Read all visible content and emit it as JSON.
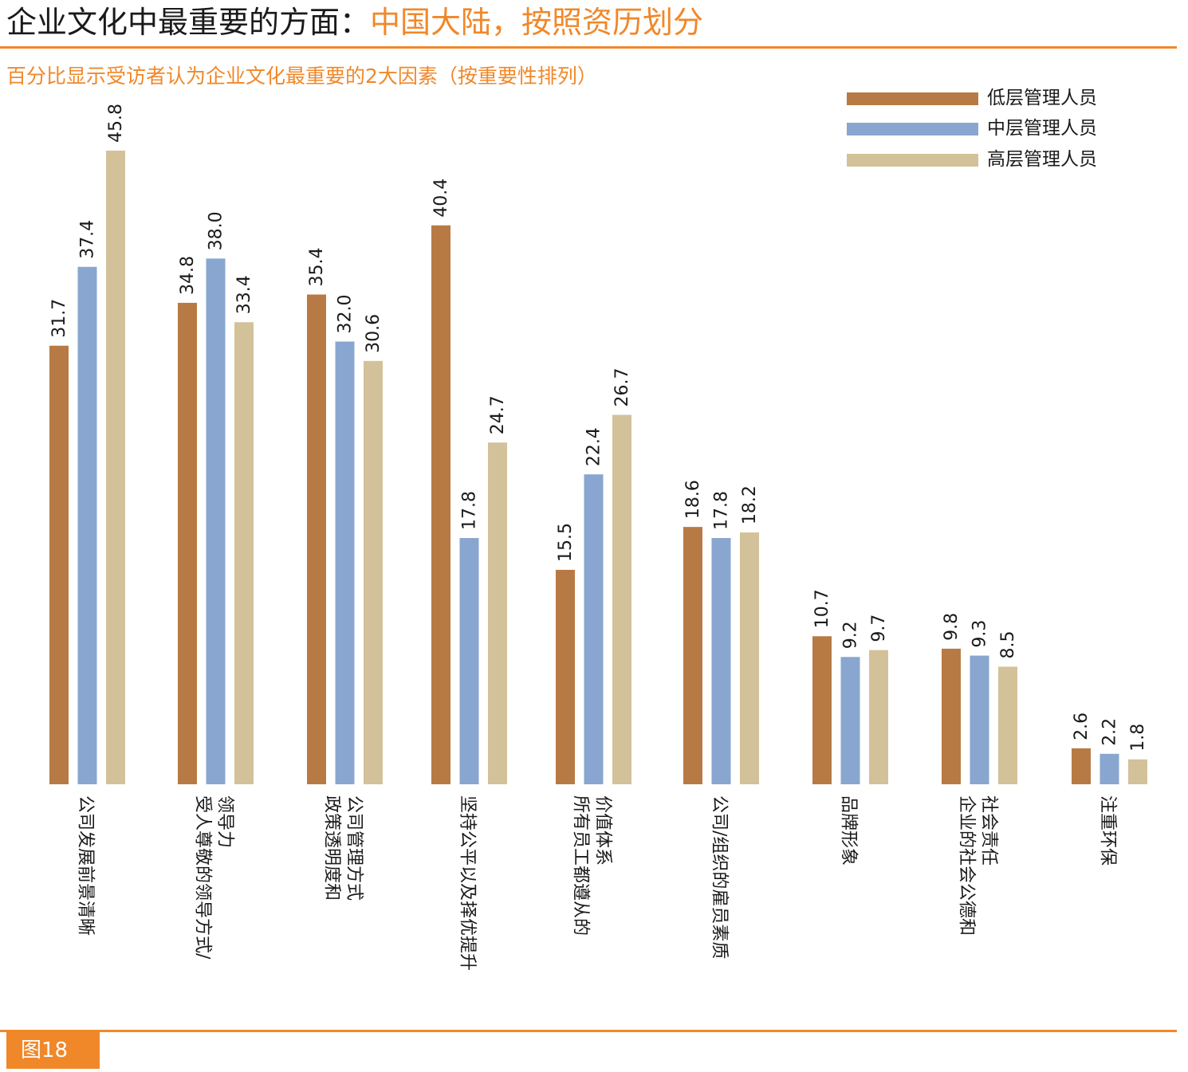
{
  "header": {
    "title_main": "企业文化中最重要的方面：",
    "title_accent": "中国大陆，按照资历划分",
    "subtitle": "百分比显示受访者认为企业文化最重要的2大因素（按重要性排列）"
  },
  "footer": {
    "figure_label": "图18"
  },
  "colors": {
    "accent": "#f0882a",
    "series": [
      "#b87a44",
      "#88a6cf",
      "#d3c19a"
    ]
  },
  "chart_data": {
    "type": "bar",
    "title": "企业文化中最重要的方面：中国大陆，按照资历划分",
    "subtitle": "百分比显示受访者认为企业文化最重要的2大因素（按重要性排列）",
    "categories": [
      [
        "公司发展前景清晰"
      ],
      [
        "受人尊敬的领导方式/",
        "领导力"
      ],
      [
        "政策透明度和",
        "公司管理方式"
      ],
      [
        "坚持公平以及择优提升"
      ],
      [
        "所有员工都遵从的",
        "价值体系"
      ],
      [
        "公司/组织的雇员素质"
      ],
      [
        "品牌形象"
      ],
      [
        "企业的社会公德和",
        "社会责任"
      ],
      [
        "注重环保"
      ]
    ],
    "series": [
      {
        "name": "低层管理人员",
        "values": [
          31.7,
          34.8,
          35.4,
          40.4,
          15.5,
          18.6,
          10.7,
          9.8,
          2.6
        ]
      },
      {
        "name": "中层管理人员",
        "values": [
          37.4,
          38.0,
          32.0,
          17.8,
          22.4,
          17.8,
          9.2,
          9.3,
          2.2
        ]
      },
      {
        "name": "高层管理人员",
        "values": [
          45.8,
          33.4,
          30.6,
          24.7,
          26.7,
          18.2,
          9.7,
          8.5,
          1.8
        ]
      }
    ],
    "ylim": [
      0,
      45.8
    ],
    "grid": false,
    "legend": "top-right",
    "value_labels": [
      "31.7",
      "37.4",
      "45.8",
      "34.8",
      "38.0",
      "33.4",
      "35.4",
      "32.0",
      "30.6",
      "40.4",
      "17.8",
      "24.7",
      "15.5",
      "22.4",
      "26.7",
      "18.6",
      "17.8",
      "18.2",
      "10.7",
      "9.2",
      "9.7",
      "9.8",
      "9.3",
      "8.5",
      "2.6",
      "2.2",
      "1.8"
    ]
  }
}
